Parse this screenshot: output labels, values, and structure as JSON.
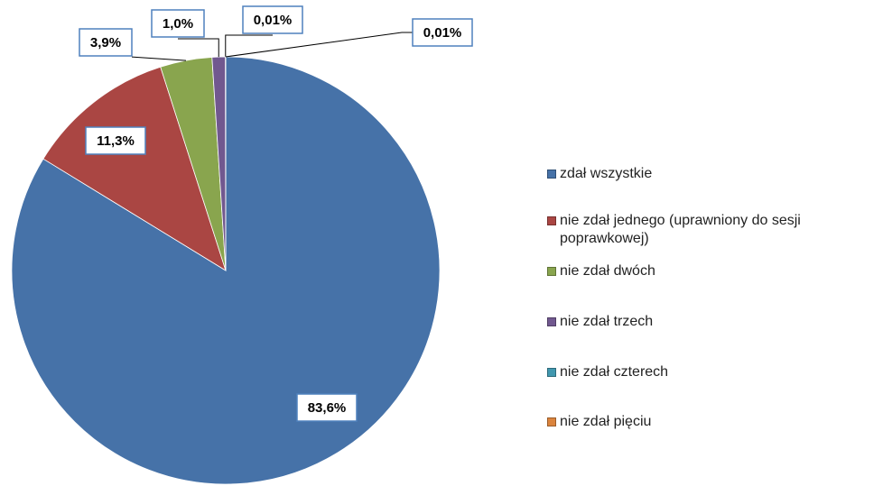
{
  "chart_data": {
    "type": "pie",
    "categories": [
      "zdał wszystkie",
      "nie zdał jednego (uprawniony do sesji poprawkowej)",
      "nie zdał dwóch",
      "nie zdał trzech",
      "nie zdał czterech",
      "nie zdał pięciu"
    ],
    "values": [
      83.6,
      11.3,
      3.9,
      1.0,
      0.01,
      0.01
    ],
    "value_labels": [
      "83,6%",
      "11,3%",
      "3,9%",
      "1,0%",
      "0,01%",
      "0,01%"
    ],
    "colors": [
      "#4672a8",
      "#aa4643",
      "#89a54e",
      "#71588f",
      "#4198af",
      "#db843d"
    ],
    "legend": "right"
  }
}
